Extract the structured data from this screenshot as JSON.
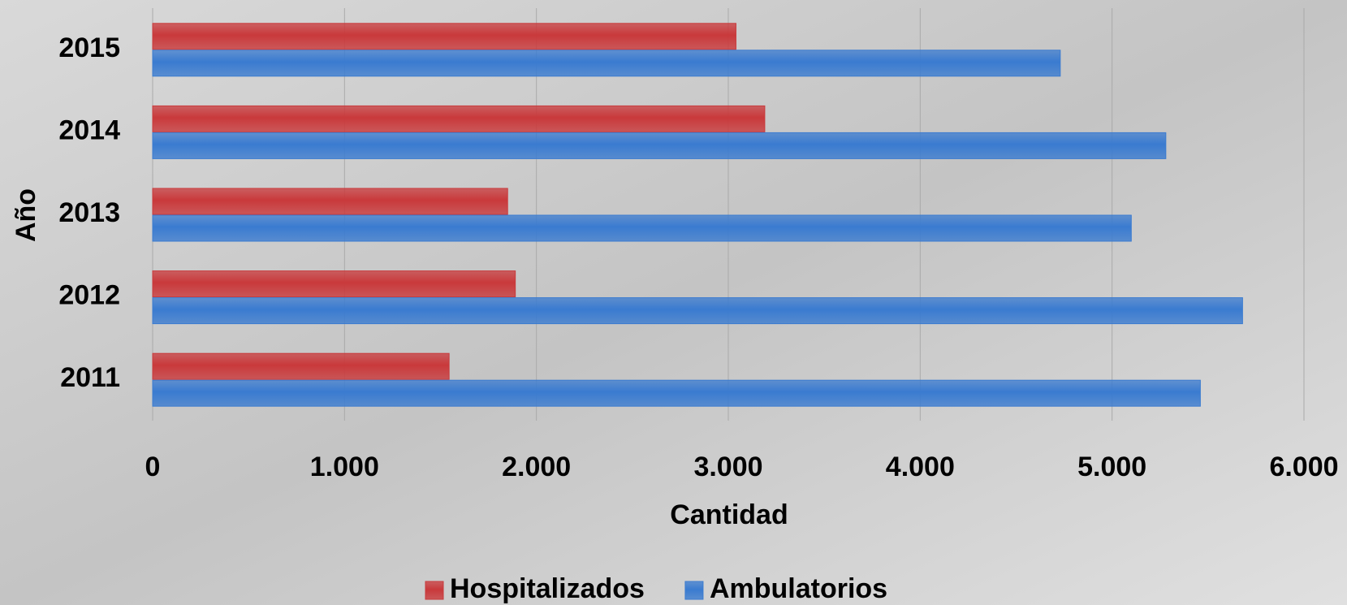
{
  "chart_data": {
    "type": "bar",
    "orientation": "horizontal",
    "x_label": "Cantidad",
    "y_label": "Año",
    "categories": [
      "2011",
      "2012",
      "2013",
      "2014",
      "2015"
    ],
    "series": [
      {
        "name": "Hospitalizados",
        "color": "#c9393b",
        "values": [
          1545,
          1890,
          1850,
          3190,
          3040
        ]
      },
      {
        "name": "Ambulatorios",
        "color": "#3a7bd0",
        "values": [
          5460,
          5680,
          5100,
          5280,
          4730
        ]
      }
    ],
    "xlim": [
      0,
      6000
    ],
    "xticks": [
      0,
      {
        "value": 1000,
        "label": "1.000"
      },
      {
        "value": 2000,
        "label": "2.000"
      },
      {
        "value": 3000,
        "label": "3.000"
      },
      {
        "value": 4000,
        "label": "4.000"
      },
      {
        "value": 5000,
        "label": "5.000"
      },
      {
        "value": 6000,
        "label": "6.000"
      }
    ],
    "grid": true,
    "legend": "bottom"
  }
}
